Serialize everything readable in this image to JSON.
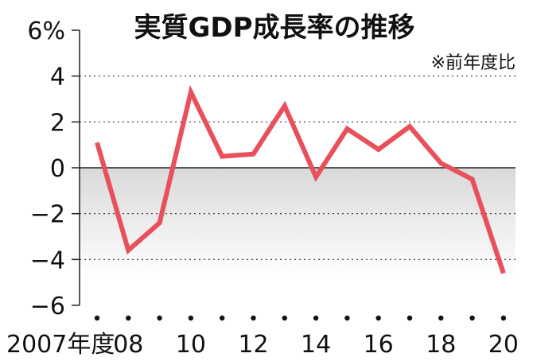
{
  "chart_data": {
    "type": "line",
    "title": "実質GDP成長率の推移",
    "note": "※前年度比",
    "y_unit_label": "6%",
    "ylim": [
      -6,
      6
    ],
    "y_ticks": [
      {
        "value": 6,
        "label": "6%"
      },
      {
        "value": 4,
        "label": "4"
      },
      {
        "value": 2,
        "label": "2"
      },
      {
        "value": 0,
        "label": "0"
      },
      {
        "value": -2,
        "label": "−2"
      },
      {
        "value": -4,
        "label": "−4"
      },
      {
        "value": -6,
        "label": "−6"
      }
    ],
    "x": [
      2007,
      2008,
      2009,
      2010,
      2011,
      2012,
      2013,
      2014,
      2015,
      2016,
      2017,
      2018,
      2019,
      2020
    ],
    "x_tick_labels": [
      {
        "x": 2007,
        "label": "2007年度"
      },
      {
        "x": 2008,
        "label": "08"
      },
      {
        "x": 2010,
        "label": "10"
      },
      {
        "x": 2012,
        "label": "12"
      },
      {
        "x": 2014,
        "label": "14"
      },
      {
        "x": 2016,
        "label": "16"
      },
      {
        "x": 2018,
        "label": "18"
      },
      {
        "x": 2020,
        "label": "20"
      }
    ],
    "series": [
      {
        "values": [
          1.1,
          -3.6,
          -2.4,
          3.3,
          0.5,
          0.6,
          2.7,
          -0.4,
          1.7,
          0.8,
          1.8,
          0.2,
          -0.5,
          -4.6
        ],
        "color": "#e8505b"
      }
    ],
    "negative_region_shaded": true,
    "gridlines": "dotted",
    "zero_line": true
  }
}
